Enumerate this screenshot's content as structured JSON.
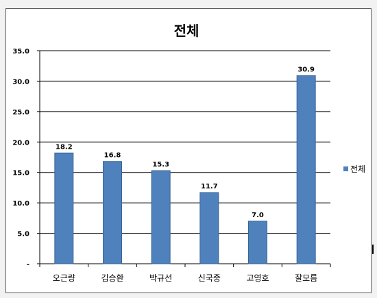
{
  "chart_data": {
    "type": "bar",
    "title": "전체",
    "categories": [
      "오근량",
      "김승환",
      "박규선",
      "신국중",
      "고영호",
      "잘모름"
    ],
    "series": [
      {
        "name": "전체",
        "values": [
          18.2,
          16.8,
          15.3,
          11.7,
          7.0,
          30.9
        ],
        "color": "#4f81bd"
      }
    ],
    "value_labels": [
      "18.2",
      "16.8",
      "15.3",
      "11.7",
      "7.0",
      "30.9"
    ],
    "y_ticks": [
      "-",
      "5.0",
      "10.0",
      "15.0",
      "20.0",
      "25.0",
      "30.0",
      "35.0"
    ],
    "ylim": [
      0,
      35
    ],
    "grid": true,
    "legend_position": "right"
  }
}
